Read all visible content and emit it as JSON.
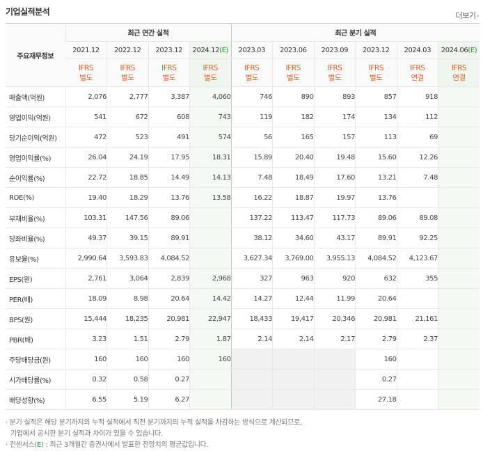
{
  "title": "기업실적분석",
  "more_label": "더보기",
  "label_header": "주요재무정보",
  "group_annual": "최근 연간 실적",
  "group_quarter": "최근 분기 실적",
  "periods": [
    "2021.12",
    "2022.12",
    "2023.12",
    "2024.12",
    "2023.03",
    "2023.06",
    "2023.09",
    "2023.12",
    "2024.03",
    "2024.06"
  ],
  "estimate_mark": "(E)",
  "ifrs": "IFRS",
  "basis": [
    "별도",
    "별도",
    "별도",
    "별도",
    "별도",
    "별도",
    "별도",
    "별도",
    "연결",
    "연결"
  ],
  "rows": [
    {
      "label": "매출액(억원)",
      "values": [
        "2,076",
        "2,777",
        "3,387",
        "4,060",
        "746",
        "890",
        "893",
        "857",
        "918",
        ""
      ]
    },
    {
      "label": "영업이익(억원)",
      "values": [
        "541",
        "672",
        "608",
        "743",
        "119",
        "182",
        "174",
        "134",
        "112",
        ""
      ]
    },
    {
      "label": "당기순이익(억원)",
      "values": [
        "472",
        "523",
        "491",
        "574",
        "56",
        "165",
        "157",
        "113",
        "69",
        ""
      ]
    },
    {
      "label": "영업이익률(%)",
      "values": [
        "26.04",
        "24.19",
        "17.95",
        "18.31",
        "15.89",
        "20.40",
        "19.48",
        "15.60",
        "12.26",
        ""
      ]
    },
    {
      "label": "순이익률(%)",
      "values": [
        "22.72",
        "18.85",
        "14.49",
        "14.13",
        "7.48",
        "18.49",
        "17.60",
        "13.21",
        "7.48",
        ""
      ]
    },
    {
      "label": "ROE(%)",
      "values": [
        "19.40",
        "18.29",
        "13.76",
        "13.58",
        "16.22",
        "18.87",
        "19.97",
        "13.76",
        "",
        ""
      ]
    },
    {
      "label": "부채비율(%)",
      "values": [
        "103.31",
        "147.56",
        "89.06",
        "",
        "137.22",
        "113.47",
        "117.73",
        "89.06",
        "89.08",
        ""
      ]
    },
    {
      "label": "당좌비율(%)",
      "values": [
        "49.37",
        "39.15",
        "89.91",
        "",
        "38.12",
        "34.60",
        "43.17",
        "89.91",
        "92.25",
        ""
      ]
    },
    {
      "label": "유보율(%)",
      "values": [
        "2,990.64",
        "3,593.83",
        "4,084.52",
        "",
        "3,627.34",
        "3,769.00",
        "3,955.13",
        "4,084.52",
        "4,123.67",
        ""
      ]
    },
    {
      "label": "EPS(원)",
      "values": [
        "2,761",
        "3,064",
        "2,839",
        "2,968",
        "327",
        "963",
        "920",
        "632",
        "355",
        ""
      ]
    },
    {
      "label": "PER(배)",
      "values": [
        "18.09",
        "8.98",
        "20.64",
        "14.42",
        "14.27",
        "12.44",
        "11.99",
        "20.64",
        "",
        ""
      ]
    },
    {
      "label": "BPS(원)",
      "values": [
        "15,444",
        "18,235",
        "20,981",
        "22,947",
        "18,433",
        "19,417",
        "20,346",
        "20,981",
        "21,161",
        ""
      ]
    },
    {
      "label": "PBR(배)",
      "values": [
        "3.23",
        "1.51",
        "2.79",
        "1.87",
        "2.14",
        "2.14",
        "2.17",
        "2.79",
        "2.37",
        ""
      ]
    },
    {
      "label": "주당배당금(원)",
      "values": [
        "160",
        "160",
        "160",
        "160",
        "",
        "",
        "",
        "160",
        "",
        ""
      ]
    },
    {
      "label": "시가배당률(%)",
      "values": [
        "0.32",
        "0.58",
        "0.27",
        "",
        "",
        "",
        "",
        "0.27",
        "",
        ""
      ]
    },
    {
      "label": "배당성향(%)",
      "values": [
        "6.55",
        "5.19",
        "6.27",
        "",
        "",
        "",
        "",
        "27.18",
        "",
        ""
      ]
    }
  ],
  "notes": {
    "line1": "분기 실적은 해당 분기까지의 누적 실적에서 직전 분기까지의 누적 실적을 차감하는 방식으로 계산되므로,",
    "line2": "기업에서 공시한 분기 실적과 차이가 있을 수 있습니다.",
    "line3_prefix": "컨센서스(",
    "line3_mark": "E",
    "line3_suffix": ") : 최근 3개월간 증권사에서 발표한 전망치의 평균값입니다."
  }
}
